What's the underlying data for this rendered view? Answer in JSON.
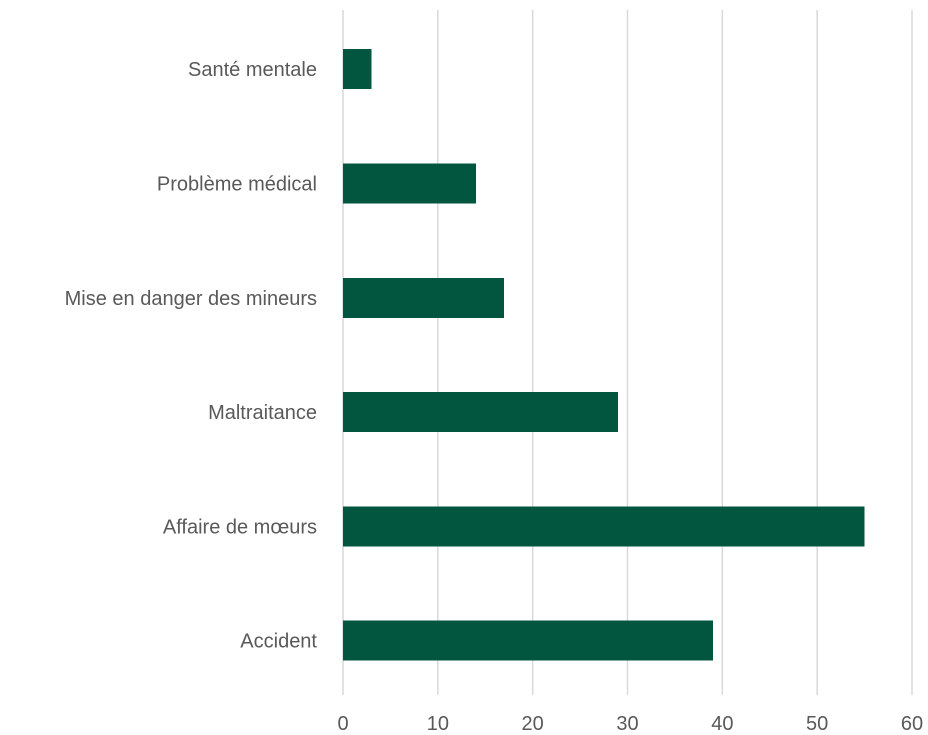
{
  "chart_data": {
    "type": "bar",
    "orientation": "horizontal",
    "categories": [
      "Santé mentale",
      "Problème médical",
      "Mise en danger des mineurs",
      "Maltraitance",
      "Affaire de mœurs",
      "Accident"
    ],
    "values": [
      3,
      14,
      17,
      29,
      55,
      39
    ],
    "xticks": [
      "0",
      "10",
      "20",
      "30",
      "40",
      "50",
      "60"
    ],
    "xlim": [
      0,
      60
    ],
    "title": "",
    "xlabel": "",
    "ylabel": "",
    "grid": "vertical",
    "legend": "none",
    "bar_color": "#02553f",
    "grid_color": "#d9d9d9",
    "text_color": "#595959"
  }
}
